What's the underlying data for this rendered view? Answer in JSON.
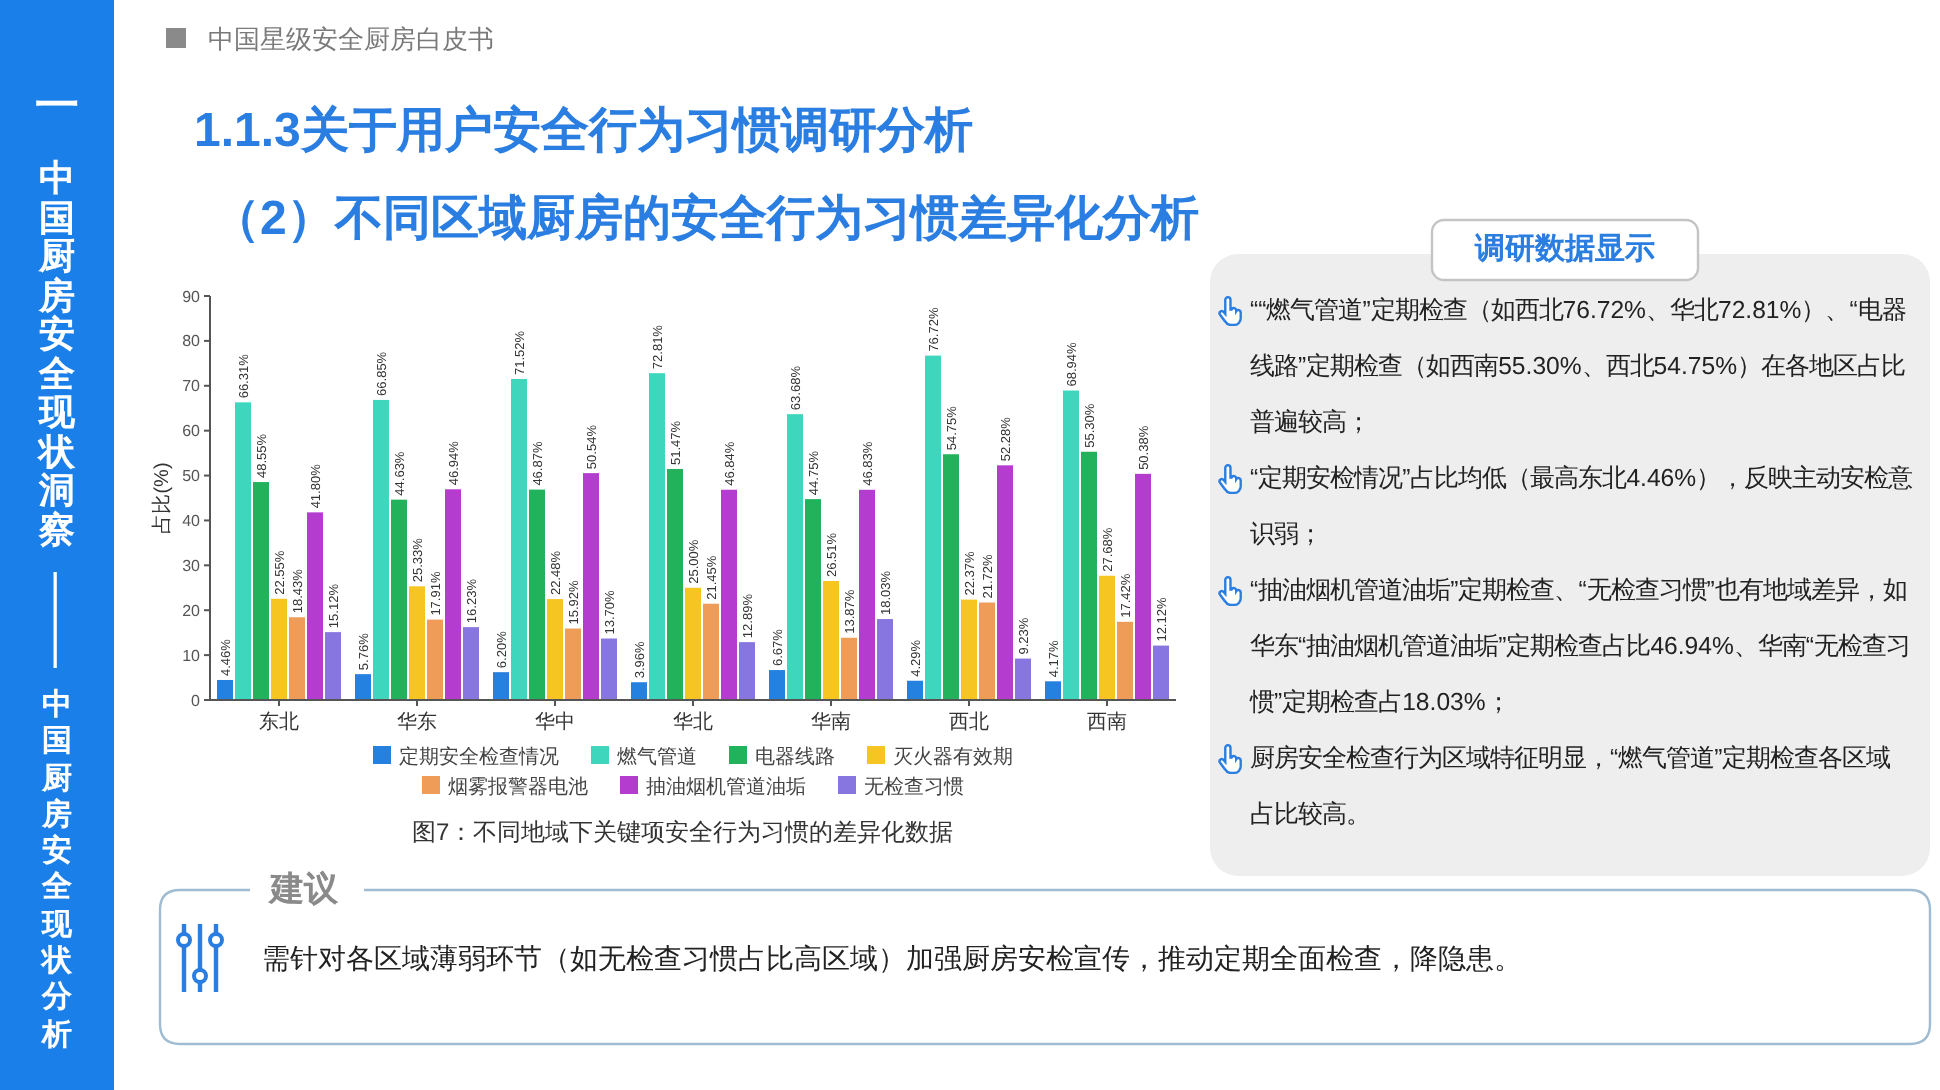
{
  "chart_data": {
    "type": "bar",
    "title": "1.1.3关于用户安全行为习惯调研分析",
    "subtitle": "（2）不同区域厨房的安全行为习惯差异化分析",
    "ylabel": "占比(%)",
    "categories": [
      "东北",
      "华东",
      "华中",
      "华北",
      "华南",
      "西北",
      "西南"
    ],
    "series": [
      {
        "name": "定期安全检查情况",
        "color": "#2481e0",
        "values": [
          4.46,
          5.76,
          6.2,
          3.96,
          6.67,
          4.29,
          4.17
        ],
        "value_labels": [
          "4.46%",
          "5.76%",
          "6.20%",
          "3.96%",
          "6.67%",
          "4.29%",
          "4.17%"
        ]
      },
      {
        "name": "燃气管道",
        "color": "#3fd6be",
        "values": [
          66.31,
          66.85,
          71.52,
          72.81,
          63.68,
          76.72,
          68.94
        ],
        "value_labels": [
          "66.31%",
          "66.85%",
          "71.52%",
          "72.81%",
          "63.68%",
          "76.72%",
          "68.94%"
        ]
      },
      {
        "name": "电器线路",
        "color": "#22b25c",
        "values": [
          48.55,
          44.63,
          46.87,
          51.47,
          44.75,
          54.75,
          55.3
        ],
        "value_labels": [
          "48.55%",
          "44.63%",
          "46.87%",
          "51.47%",
          "44.75%",
          "54.75%",
          "55.30%"
        ]
      },
      {
        "name": "灭火器有效期",
        "color": "#f6c521",
        "values": [
          22.55,
          25.33,
          22.48,
          25.0,
          26.51,
          22.37,
          27.68
        ],
        "value_labels": [
          "22.55%",
          "25.33%",
          "22.48%",
          "25.00%",
          "26.51%",
          "22.37%",
          "27.68%"
        ]
      },
      {
        "name": "烟雾报警器电池",
        "color": "#ef9c58",
        "values": [
          18.43,
          17.91,
          15.92,
          21.45,
          13.87,
          21.72,
          17.42
        ],
        "value_labels": [
          "18.43%",
          "17.91%",
          "15.92%",
          "21.45%",
          "13.87%",
          "21.72%",
          "17.42%"
        ]
      },
      {
        "name": "抽油烟机管道油垢",
        "color": "#b43ccf",
        "values": [
          41.8,
          46.94,
          50.54,
          46.84,
          46.83,
          52.28,
          50.38
        ],
        "value_labels": [
          "41.80%",
          "46.94%",
          "50.54%",
          "46.84%",
          "46.83%",
          "52.28%",
          "50.38%"
        ]
      },
      {
        "name": "无检查习惯",
        "color": "#8775e0",
        "values": [
          15.12,
          16.23,
          13.7,
          12.89,
          18.03,
          9.23,
          12.12
        ],
        "value_labels": [
          "15.12%",
          "16.23%",
          "13.70%",
          "12.89%",
          "18.03%",
          "9.23%",
          "12.12%"
        ]
      }
    ],
    "ylim": [
      0,
      90
    ],
    "yticks": [
      0,
      10,
      20,
      30,
      40,
      50,
      60,
      70,
      80,
      90
    ],
    "legend": "bottom",
    "annotations": [
      "中国星级安全厨房白皮书",
      "一",
      "中国厨房安全现状洞察",
      "——",
      "中国厨房安全现状分析",
      "图7：不同地域下关键项安全行为习惯的差异化数据",
      "调研数据显示",
      "““燃气管道”定期检查（如西北76.72%、华北72.81%）、“电器线路”定期检查（如西南55.30%、西北54.75%）在各地区占比普遍较高；",
      "“定期安检情况”占比均低（最高东北4.46%），反映主动安检意识弱；",
      "“抽油烟机管道油垢”定期检查、“无检查习惯”也有地域差异，如华东“抽油烟机管道油垢”定期检查占比46.94%、华南“无检查习惯”定期检查占18.03%；",
      "厨房安全检查行为区域特征明显，“燃气管道”定期检查各区域占比较高。",
      "建议",
      "需针对各区域薄弱环节（如无检查习惯占比高区域）加强厨房安检宣传，推动定期全面检查，降隐患。"
    ]
  }
}
